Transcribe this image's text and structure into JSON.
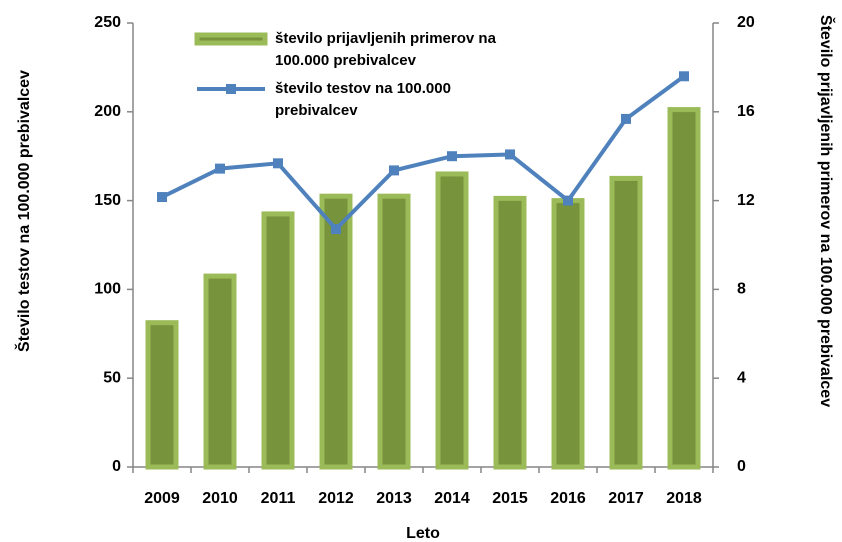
{
  "chart_data": {
    "type": "bar-line",
    "xlabel": "Leto",
    "ylabel": "Število testov na 100.000 prebivalcev",
    "y2label": "Število prijavljenih primerov na 100.000 prebivalcev",
    "categories": [
      "2009",
      "2010",
      "2011",
      "2012",
      "2013",
      "2014",
      "2015",
      "2016",
      "2017",
      "2018"
    ],
    "series": [
      {
        "name": "število prijavljenih primerov na 100.000 prebivalcev",
        "type": "bar",
        "axis": "y2",
        "color": "#77933c",
        "edge_color": "#9bbb59",
        "values": [
          6.5,
          8.6,
          11.4,
          12.2,
          12.2,
          13.2,
          12.1,
          12.0,
          13.0,
          16.1
        ]
      },
      {
        "name": "število testov na 100.000 prebivalcev",
        "type": "line",
        "axis": "y",
        "color": "#4f81bd",
        "values": [
          152,
          168,
          171,
          134,
          167,
          175,
          176,
          150,
          196,
          220
        ]
      }
    ],
    "ylim": [
      0,
      250
    ],
    "yticks": [
      0,
      50,
      100,
      150,
      200,
      250
    ],
    "y2lim": [
      0,
      20
    ],
    "y2ticks": [
      0,
      4,
      8,
      12,
      16,
      20
    ],
    "grid": false
  }
}
